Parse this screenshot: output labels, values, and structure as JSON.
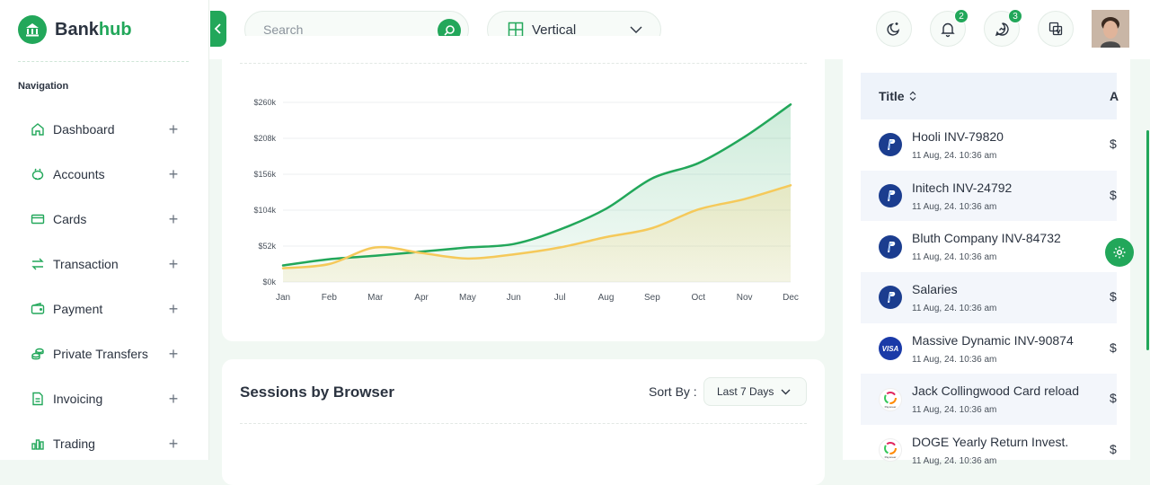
{
  "brand": {
    "name_part1": "Bank",
    "name_part2": "hub"
  },
  "sidebar": {
    "heading": "Navigation",
    "items": [
      {
        "label": "Dashboard",
        "icon": "home-icon"
      },
      {
        "label": "Accounts",
        "icon": "piggy-bank-icon"
      },
      {
        "label": "Cards",
        "icon": "credit-card-icon"
      },
      {
        "label": "Transaction",
        "icon": "arrows-swap-icon"
      },
      {
        "label": "Payment",
        "icon": "wallet-icon"
      },
      {
        "label": "Private Transfers",
        "icon": "coins-icon"
      },
      {
        "label": "Invoicing",
        "icon": "document-icon"
      },
      {
        "label": "Trading",
        "icon": "bar-chart-icon"
      }
    ]
  },
  "header": {
    "search_placeholder": "Search",
    "layout_label": "Vertical",
    "notifications_count": "2",
    "messages_count": "3"
  },
  "colors": {
    "accent": "#22a75a",
    "series_green": "#22a75a",
    "series_yellow": "#f5c95a"
  },
  "chart_data": {
    "type": "area",
    "categories": [
      "Jan",
      "Feb",
      "Mar",
      "Apr",
      "May",
      "Jun",
      "Jul",
      "Aug",
      "Sep",
      "Oct",
      "Nov",
      "Dec"
    ],
    "series": [
      {
        "values": [
          24,
          33,
          38,
          44,
          50,
          55,
          76,
          106,
          150,
          172,
          210,
          257
        ],
        "color": "#22a75a"
      },
      {
        "values": [
          20,
          26,
          50,
          42,
          34,
          40,
          50,
          65,
          78,
          105,
          120,
          140
        ],
        "color": "#f5c95a"
      }
    ],
    "yticks": [
      "$0k",
      "$52k",
      "$104k",
      "$156k",
      "$208k",
      "$260k"
    ],
    "ylim": [
      0,
      260
    ],
    "xlabel": "",
    "ylabel": ""
  },
  "sessions": {
    "title": "Sessions by Browser",
    "sort_label": "Sort By :",
    "sort_value": "Last 7 Days"
  },
  "transactions": {
    "col_title": "Title",
    "col_second": "A",
    "rows": [
      {
        "title": "Hooli INV-79820",
        "date": "11 Aug, 24. 10:36 am",
        "amount": "$",
        "method": "paypal"
      },
      {
        "title": "Initech INV-24792",
        "date": "11 Aug, 24. 10:36 am",
        "amount": "$",
        "method": "paypal"
      },
      {
        "title": "Bluth Company INV-84732",
        "date": "11 Aug, 24. 10:36 am",
        "amount": "$",
        "method": "paypal"
      },
      {
        "title": "Salaries",
        "date": "11 Aug, 24. 10:36 am",
        "amount": "$",
        "method": "paypal"
      },
      {
        "title": "Massive Dynamic INV-90874",
        "date": "11 Aug, 24. 10:36 am",
        "amount": "$",
        "method": "visa"
      },
      {
        "title": "Jack Collingwood Card reload",
        "date": "11 Aug, 24. 10:36 am",
        "amount": "$",
        "method": "payoneer"
      },
      {
        "title": "DOGE Yearly Return Invest.",
        "date": "11 Aug, 24. 10:36 am",
        "amount": "$",
        "method": "payoneer"
      }
    ],
    "visa_label": "VISA",
    "payoneer_label": "Payoneer"
  }
}
